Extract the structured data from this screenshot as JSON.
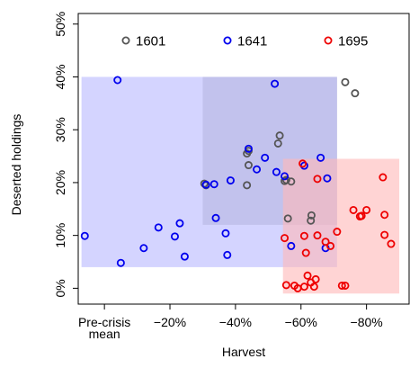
{
  "chart_data": {
    "type": "scatter",
    "xlabel": "Harvest",
    "ylabel": "Deserted holdings",
    "xlim": [
      8,
      -93
    ],
    "ylim": [
      -3,
      52
    ],
    "x_ticks": [
      {
        "value": 0,
        "label": "Pre-crisis\nmean"
      },
      {
        "value": -20,
        "label": "−20%"
      },
      {
        "value": -40,
        "label": "−40%"
      },
      {
        "value": -60,
        "label": "−60%"
      },
      {
        "value": -80,
        "label": "−80%"
      }
    ],
    "y_ticks": [
      {
        "value": 0,
        "label": "0%"
      },
      {
        "value": 10,
        "label": "10%"
      },
      {
        "value": 20,
        "label": "20%"
      },
      {
        "value": 30,
        "label": "30%"
      },
      {
        "value": 40,
        "label": "40%"
      },
      {
        "value": 50,
        "label": "50%"
      }
    ],
    "legend_position": "top",
    "grid": false,
    "series": [
      {
        "name": "1601",
        "color": "#555555",
        "box": {
          "x": [
            -30,
            -71
          ],
          "y": [
            12,
            40
          ],
          "fill": "#b3b3b3"
        },
        "points": [
          [
            -43.5,
            19.5
          ],
          [
            -30.5,
            19.8
          ],
          [
            -31,
            19.5
          ],
          [
            -43.5,
            25.5
          ],
          [
            -44,
            23.3
          ],
          [
            -44,
            26
          ],
          [
            -53,
            27.4
          ],
          [
            -53.5,
            28.9
          ],
          [
            -55.5,
            20.5
          ],
          [
            -55,
            20.3
          ],
          [
            -57,
            20.2
          ],
          [
            -56,
            13.2
          ],
          [
            -63.2,
            13.8
          ],
          [
            -63,
            12.8
          ],
          [
            -73.5,
            39
          ],
          [
            -76.5,
            36.9
          ]
        ]
      },
      {
        "name": "1641",
        "color": "#0000ee",
        "box": {
          "x": [
            7,
            -71
          ],
          "y": [
            4,
            40
          ],
          "fill": "#b8b8ff"
        },
        "points": [
          [
            6,
            9.9
          ],
          [
            -4,
            39.4
          ],
          [
            -5,
            4.8
          ],
          [
            -12,
            7.6
          ],
          [
            -16.5,
            11.5
          ],
          [
            -21.5,
            9.8
          ],
          [
            -23,
            12.3
          ],
          [
            -24.5,
            6
          ],
          [
            -31,
            19.6
          ],
          [
            -33.5,
            19.7
          ],
          [
            -34,
            13.3
          ],
          [
            -37,
            10.4
          ],
          [
            -37.5,
            6.3
          ],
          [
            -38.5,
            20.4
          ],
          [
            -44,
            26.4
          ],
          [
            -46.5,
            22.5
          ],
          [
            -49,
            24.7
          ],
          [
            -52,
            38.7
          ],
          [
            -52.5,
            22
          ],
          [
            -55,
            21.2
          ],
          [
            -57,
            8
          ],
          [
            -61,
            23.2
          ],
          [
            -66,
            24.7
          ],
          [
            -68,
            20.8
          ],
          [
            -67.5,
            7.6
          ]
        ]
      },
      {
        "name": "1695",
        "color": "#ee0000",
        "box": {
          "x": [
            -54.5,
            -90
          ],
          "y": [
            -1,
            24.5
          ],
          "fill": "#ffb8b8"
        },
        "points": [
          [
            -55,
            9.5
          ],
          [
            -55.5,
            0.6
          ],
          [
            -58,
            0.5
          ],
          [
            -59,
            0
          ],
          [
            -61,
            0.3
          ],
          [
            -61,
            9.9
          ],
          [
            -61.5,
            6.7
          ],
          [
            -60.5,
            23.6
          ],
          [
            -62,
            2.4
          ],
          [
            -63,
            1.1
          ],
          [
            -64,
            0.3
          ],
          [
            -64.5,
            1.7
          ],
          [
            -65,
            10
          ],
          [
            -65,
            20.7
          ],
          [
            -67.5,
            8.8
          ],
          [
            -69,
            8
          ],
          [
            -71,
            10.7
          ],
          [
            -72.5,
            0.5
          ],
          [
            -73.5,
            0.5
          ],
          [
            -76,
            14.8
          ],
          [
            -78,
            13.6
          ],
          [
            -78.5,
            13.7
          ],
          [
            -80,
            14.8
          ],
          [
            -85,
            21
          ],
          [
            -85.5,
            10.1
          ],
          [
            -85.5,
            13.9
          ],
          [
            -87.5,
            8.4
          ]
        ]
      }
    ]
  }
}
